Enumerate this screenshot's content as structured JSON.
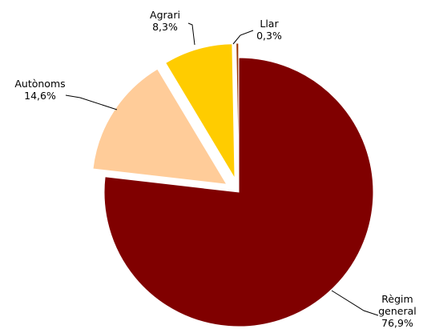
{
  "chart_data": {
    "type": "pie",
    "slices": [
      {
        "label": "Règim general",
        "label_lines": [
          "Règim",
          "general"
        ],
        "value": 76.9,
        "value_text": "76,9%",
        "color": "#800000",
        "exploded": false
      },
      {
        "label": "Autònoms",
        "label_lines": [
          "Autònoms"
        ],
        "value": 14.6,
        "value_text": "14,6%",
        "color": "#FFCC99",
        "exploded": true
      },
      {
        "label": "Agrari",
        "label_lines": [
          "Agrari"
        ],
        "value": 8.3,
        "value_text": "8,3%",
        "color": "#FFCC00",
        "exploded": true
      },
      {
        "label": "Llar",
        "label_lines": [
          "Llar"
        ],
        "value": 0.3,
        "value_text": "0,3%",
        "color": "#993300",
        "exploded": true
      }
    ],
    "start_angle_deg": 0,
    "direction": "clockwise",
    "legend": "none",
    "labels": "outside-with-leader-lines"
  }
}
